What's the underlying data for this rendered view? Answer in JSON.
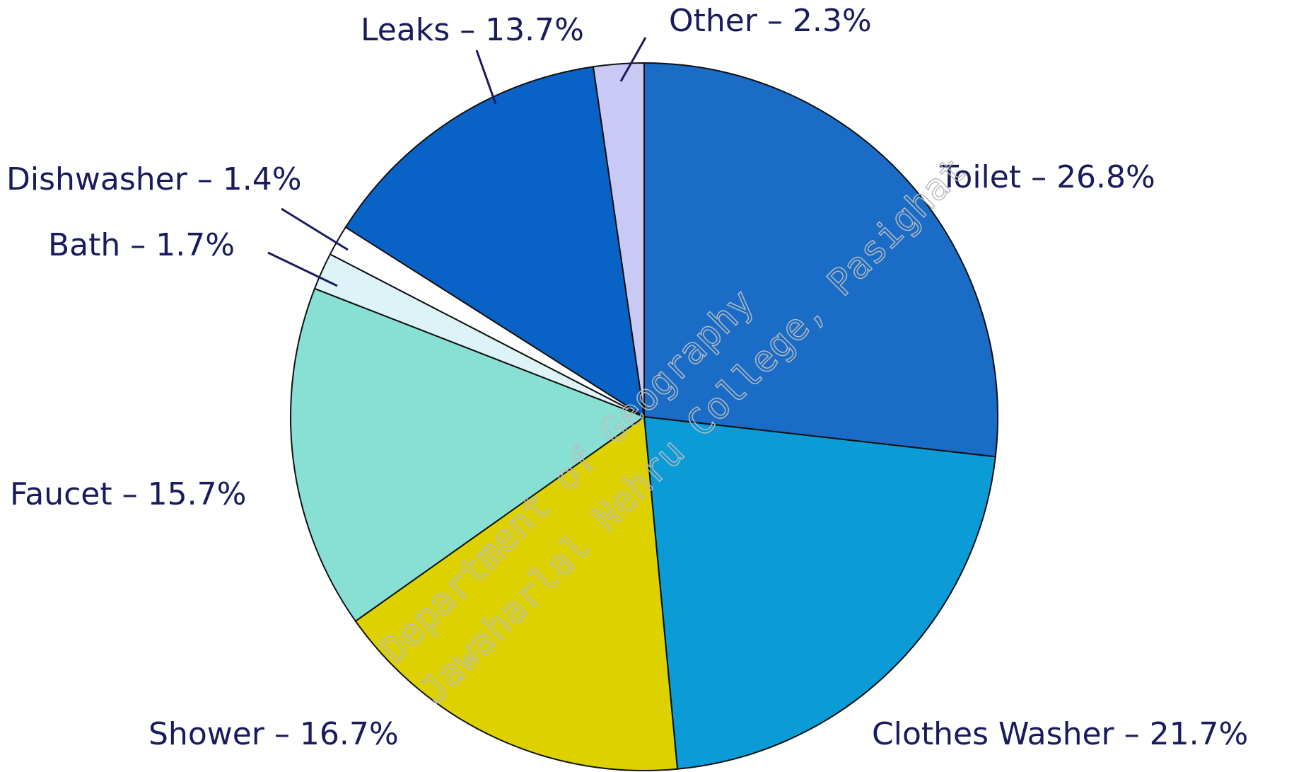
{
  "chart_data": {
    "type": "pie",
    "categories": [
      "Toilet – 26.8%",
      "Clothes Washer – 21.7%",
      "Shower – 16.7%",
      "Faucet – 15.7%",
      "Bath – 1.7%",
      "Dishwasher – 1.4%",
      "Leaks – 13.7%",
      "Other – 2.3%"
    ],
    "values": [
      26.8,
      21.7,
      16.7,
      15.7,
      1.7,
      1.4,
      13.7,
      2.3
    ],
    "colors": [
      "#1a6cc6",
      "#0b9bd7",
      "#ddd200",
      "#88e0d4",
      "#dcf3f8",
      "#ffffff",
      "#0963c6",
      "#c9c9f6"
    ],
    "watermark": [
      "Department of Geography",
      "Jawaharlal Nehru College, Pasighat"
    ]
  }
}
